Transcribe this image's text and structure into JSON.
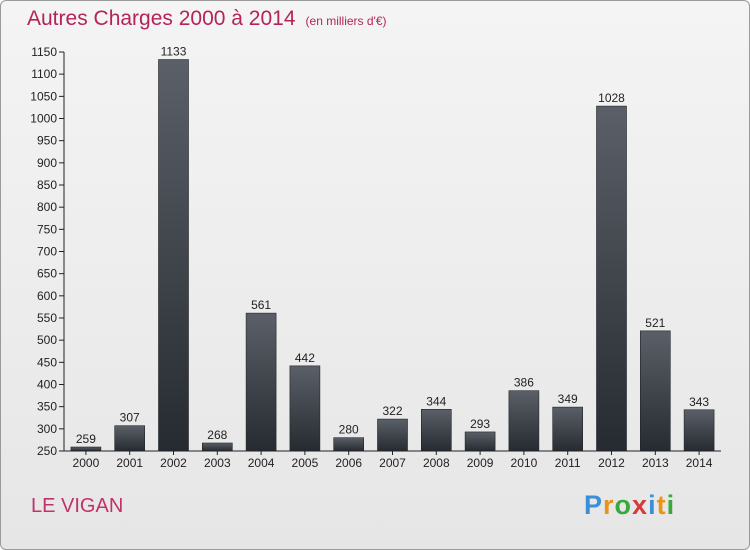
{
  "title": "Autres Charges 2000 à 2014",
  "unit": "(en milliers d'€)",
  "place": "LE VIGAN",
  "logo": {
    "letters": [
      "P",
      "r",
      "o",
      "x",
      "i",
      "t",
      "i"
    ],
    "colors": [
      "#3a8fd6",
      "#e8941a",
      "#3aa83a",
      "#d63a3a",
      "#3a8fd6",
      "#e8941a",
      "#3aa83a"
    ]
  },
  "chart_data": {
    "type": "bar",
    "title": "Autres Charges 2000 à 2014",
    "xlabel": "",
    "ylabel": "",
    "categories": [
      "2000",
      "2001",
      "2002",
      "2003",
      "2004",
      "2005",
      "2006",
      "2007",
      "2008",
      "2009",
      "2010",
      "2011",
      "2012",
      "2013",
      "2014"
    ],
    "values": [
      259,
      307,
      1133,
      268,
      561,
      442,
      280,
      322,
      344,
      293,
      386,
      349,
      1028,
      521,
      343
    ],
    "ylim": [
      250,
      1150
    ],
    "yticks": [
      250,
      300,
      350,
      400,
      450,
      500,
      550,
      600,
      650,
      700,
      750,
      800,
      850,
      900,
      950,
      1000,
      1050,
      1100,
      1150
    ],
    "grid": false,
    "legend": "none",
    "bar_color": "#3b4047"
  }
}
